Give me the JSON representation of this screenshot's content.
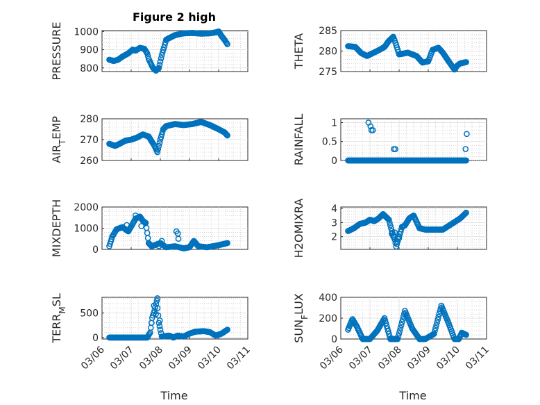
{
  "figure_title": "Figure 2 high",
  "marker_color": "#0072bd",
  "chart_data": [
    {
      "type": "scatter",
      "ylabel": "PRESSURE",
      "ylim": [
        780,
        1005
      ],
      "yticks": [
        800,
        900,
        1000
      ],
      "ytick_labels": [
        "800",
        "900",
        "1000"
      ],
      "xlim": [
        0,
        5
      ],
      "xtick_labels": [
        "03/06",
        "03/07",
        "03/08",
        "03/09",
        "03/10",
        "03/11"
      ],
      "grid": true,
      "marker": "circle-open",
      "anchors_x": [
        0.25,
        0.4,
        0.55,
        0.7,
        0.9,
        1.05,
        1.15,
        1.3,
        1.45,
        1.55,
        1.6,
        1.7,
        1.75,
        1.85,
        1.95,
        2.05,
        2.2,
        2.5,
        2.8,
        3.1,
        3.4,
        3.7,
        3.9,
        4.0,
        4.1,
        4.2,
        4.3
      ],
      "anchors_y": [
        845,
        838,
        845,
        862,
        880,
        900,
        895,
        910,
        905,
        880,
        850,
        815,
        800,
        785,
        800,
        870,
        955,
        980,
        990,
        992,
        988,
        990,
        995,
        1000,
        975,
        955,
        930
      ]
    },
    {
      "type": "scatter",
      "ylabel": "THETA",
      "ylim": [
        275,
        285
      ],
      "yticks": [
        275,
        280,
        285
      ],
      "ytick_labels": [
        "275",
        "280",
        "285"
      ],
      "xlim": [
        0,
        5
      ],
      "xtick_labels": [
        "03/06",
        "03/07",
        "03/08",
        "03/09",
        "03/10",
        "03/11"
      ],
      "grid": true,
      "marker": "circle-open",
      "anchors_x": [
        0.25,
        0.5,
        0.7,
        0.9,
        1.1,
        1.3,
        1.5,
        1.65,
        1.8,
        1.9,
        2.0,
        2.3,
        2.6,
        2.8,
        3.0,
        3.15,
        3.35,
        3.5,
        3.7,
        3.9,
        4.0,
        4.1,
        4.3
      ],
      "anchors_y": [
        281.2,
        281.0,
        279.5,
        278.8,
        279.5,
        280.2,
        281.0,
        282.5,
        283.5,
        281.5,
        279.2,
        279.6,
        278.8,
        277.2,
        277.5,
        280.3,
        280.8,
        279.6,
        277.5,
        275.5,
        276.5,
        277.0,
        277.3
      ]
    },
    {
      "type": "scatter",
      "ylabel": "AIR_TEMP",
      "ylim": [
        260,
        280
      ],
      "yticks": [
        260,
        270,
        280
      ],
      "ytick_labels": [
        "260",
        "270",
        "280"
      ],
      "xlim": [
        0,
        5
      ],
      "xtick_labels": [
        "03/06",
        "03/07",
        "03/08",
        "03/09",
        "03/10",
        "03/11"
      ],
      "grid": true,
      "marker": "circle-open",
      "anchors_x": [
        0.25,
        0.45,
        0.6,
        0.8,
        1.0,
        1.2,
        1.4,
        1.6,
        1.8,
        1.9,
        2.0,
        2.1,
        2.2,
        2.5,
        2.8,
        3.1,
        3.4,
        3.7,
        4.0,
        4.2,
        4.3
      ],
      "anchors_y": [
        268,
        267,
        268,
        269.5,
        270,
        271,
        272.5,
        271.5,
        267,
        264,
        270,
        275,
        276.5,
        277.5,
        277,
        277.5,
        278.5,
        277,
        275,
        273.5,
        272
      ]
    },
    {
      "type": "scatter",
      "ylabel": "RAINFALL",
      "ylim": [
        0,
        1.1
      ],
      "yticks": [
        0,
        0.5,
        1
      ],
      "ytick_labels": [
        "0",
        "0.5",
        "1"
      ],
      "xlim": [
        0,
        5
      ],
      "xtick_labels": [
        "03/06",
        "03/07",
        "03/08",
        "03/09",
        "03/10",
        "03/11"
      ],
      "grid": true,
      "marker": "circle-open",
      "anchors_x": [
        0.25,
        4.3
      ],
      "anchors_y": [
        0,
        0
      ],
      "extra_points": [
        [
          0.95,
          1.0
        ],
        [
          1.02,
          0.9
        ],
        [
          1.05,
          0.8
        ],
        [
          1.1,
          0.8
        ],
        [
          1.82,
          0.3
        ],
        [
          1.87,
          0.3
        ],
        [
          4.28,
          0.3
        ],
        [
          4.32,
          0.7
        ]
      ]
    },
    {
      "type": "scatter",
      "ylabel": "MIXDEPTH",
      "ylim": [
        0,
        2000
      ],
      "yticks": [
        0,
        1000,
        2000
      ],
      "ytick_labels": [
        "0",
        "1000",
        "2000"
      ],
      "xlim": [
        0,
        5
      ],
      "xtick_labels": [
        "03/06",
        "03/07",
        "03/08",
        "03/09",
        "03/10",
        "03/11"
      ],
      "grid": true,
      "marker": "circle-open",
      "anchors_x": [
        0.25,
        0.35,
        0.5,
        0.7,
        0.9,
        1.05,
        1.15,
        1.3,
        1.4,
        1.5,
        1.6,
        1.7,
        1.8,
        2.0,
        2.2,
        2.5,
        2.8,
        3.0,
        3.15,
        3.3,
        3.6,
        4.0,
        4.3
      ],
      "anchors_y": [
        150,
        600,
        950,
        1050,
        850,
        1200,
        1450,
        1550,
        1350,
        1250,
        300,
        150,
        200,
        300,
        100,
        150,
        50,
        100,
        400,
        150,
        100,
        200,
        300
      ],
      "extra_points": [
        [
          1.35,
          1100
        ],
        [
          1.95,
          150
        ],
        [
          2.05,
          400
        ],
        [
          2.55,
          850
        ],
        [
          2.6,
          750
        ],
        [
          2.62,
          500
        ],
        [
          1.15,
          1600
        ],
        [
          0.85,
          1150
        ]
      ]
    },
    {
      "type": "scatter",
      "ylabel": "H2OMIXRA",
      "ylim": [
        1.1,
        4.1
      ],
      "yticks": [
        2,
        3,
        4
      ],
      "ytick_labels": [
        "2",
        "3",
        "4"
      ],
      "xlim": [
        0,
        5
      ],
      "xtick_labels": [
        "03/06",
        "03/07",
        "03/08",
        "03/09",
        "03/10",
        "03/11"
      ],
      "grid": true,
      "marker": "circle-open",
      "anchors_x": [
        0.25,
        0.45,
        0.65,
        0.85,
        1.0,
        1.15,
        1.3,
        1.45,
        1.55,
        1.65,
        1.75,
        1.85,
        1.9,
        2.0,
        2.1,
        2.2,
        2.35,
        2.5,
        2.7,
        2.9,
        3.2,
        3.5,
        3.8,
        4.1,
        4.3
      ],
      "anchors_y": [
        2.4,
        2.6,
        2.9,
        3.0,
        3.2,
        3.1,
        3.3,
        3.6,
        3.4,
        3.2,
        2.4,
        1.8,
        1.3,
        2.0,
        2.7,
        2.8,
        3.3,
        3.5,
        2.6,
        2.5,
        2.5,
        2.5,
        2.9,
        3.3,
        3.7
      ],
      "extra_points": [
        [
          1.75,
          2.2
        ],
        [
          1.8,
          2.0
        ],
        [
          2.0,
          1.9
        ],
        [
          1.85,
          2.3
        ]
      ]
    },
    {
      "type": "scatter",
      "ylabel": "TERR_MSL",
      "ylim": [
        -30,
        820
      ],
      "yticks": [
        0,
        500
      ],
      "ytick_labels": [
        "0",
        "500"
      ],
      "xlim": [
        0,
        5
      ],
      "xtick_labels": [
        "03/06",
        "03/07",
        "03/08",
        "03/09",
        "03/10",
        "03/11"
      ],
      "grid": true,
      "marker": "circle-open",
      "anchors_x": [
        0.25,
        1.55,
        1.65,
        1.72,
        1.8,
        1.88,
        1.95,
        2.05,
        2.3,
        2.45,
        2.6,
        2.8,
        3.0,
        3.2,
        3.5,
        3.7,
        3.9,
        4.1,
        4.3
      ],
      "anchors_y": [
        0,
        0,
        100,
        400,
        550,
        750,
        300,
        20,
        40,
        0,
        40,
        20,
        80,
        120,
        130,
        110,
        40,
        80,
        160
      ],
      "extra_points": [
        [
          1.9,
          800
        ],
        [
          1.85,
          480
        ],
        [
          1.98,
          350
        ],
        [
          1.7,
          300
        ],
        [
          1.78,
          650
        ]
      ]
    },
    {
      "type": "scatter",
      "ylabel": "SUN_FLUX",
      "ylim": [
        0,
        400
      ],
      "yticks": [
        0,
        200,
        400
      ],
      "ytick_labels": [
        "0",
        "200",
        "400"
      ],
      "xlim": [
        0,
        5
      ],
      "xtick_labels": [
        "03/06",
        "03/07",
        "03/08",
        "03/09",
        "03/10",
        "03/11"
      ],
      "grid": true,
      "marker": "circle-open",
      "anchors_x": [
        0.25,
        0.4,
        0.55,
        0.75,
        1.0,
        1.25,
        1.5,
        1.7,
        1.95,
        2.2,
        2.45,
        2.7,
        2.9,
        3.2,
        3.45,
        3.7,
        3.9,
        4.05,
        4.15,
        4.3
      ],
      "anchors_y": [
        90,
        190,
        120,
        0,
        0,
        80,
        200,
        0,
        0,
        270,
        100,
        0,
        0,
        50,
        320,
        150,
        0,
        0,
        60,
        40
      ]
    }
  ],
  "shared": {
    "xlabel": "Time"
  }
}
